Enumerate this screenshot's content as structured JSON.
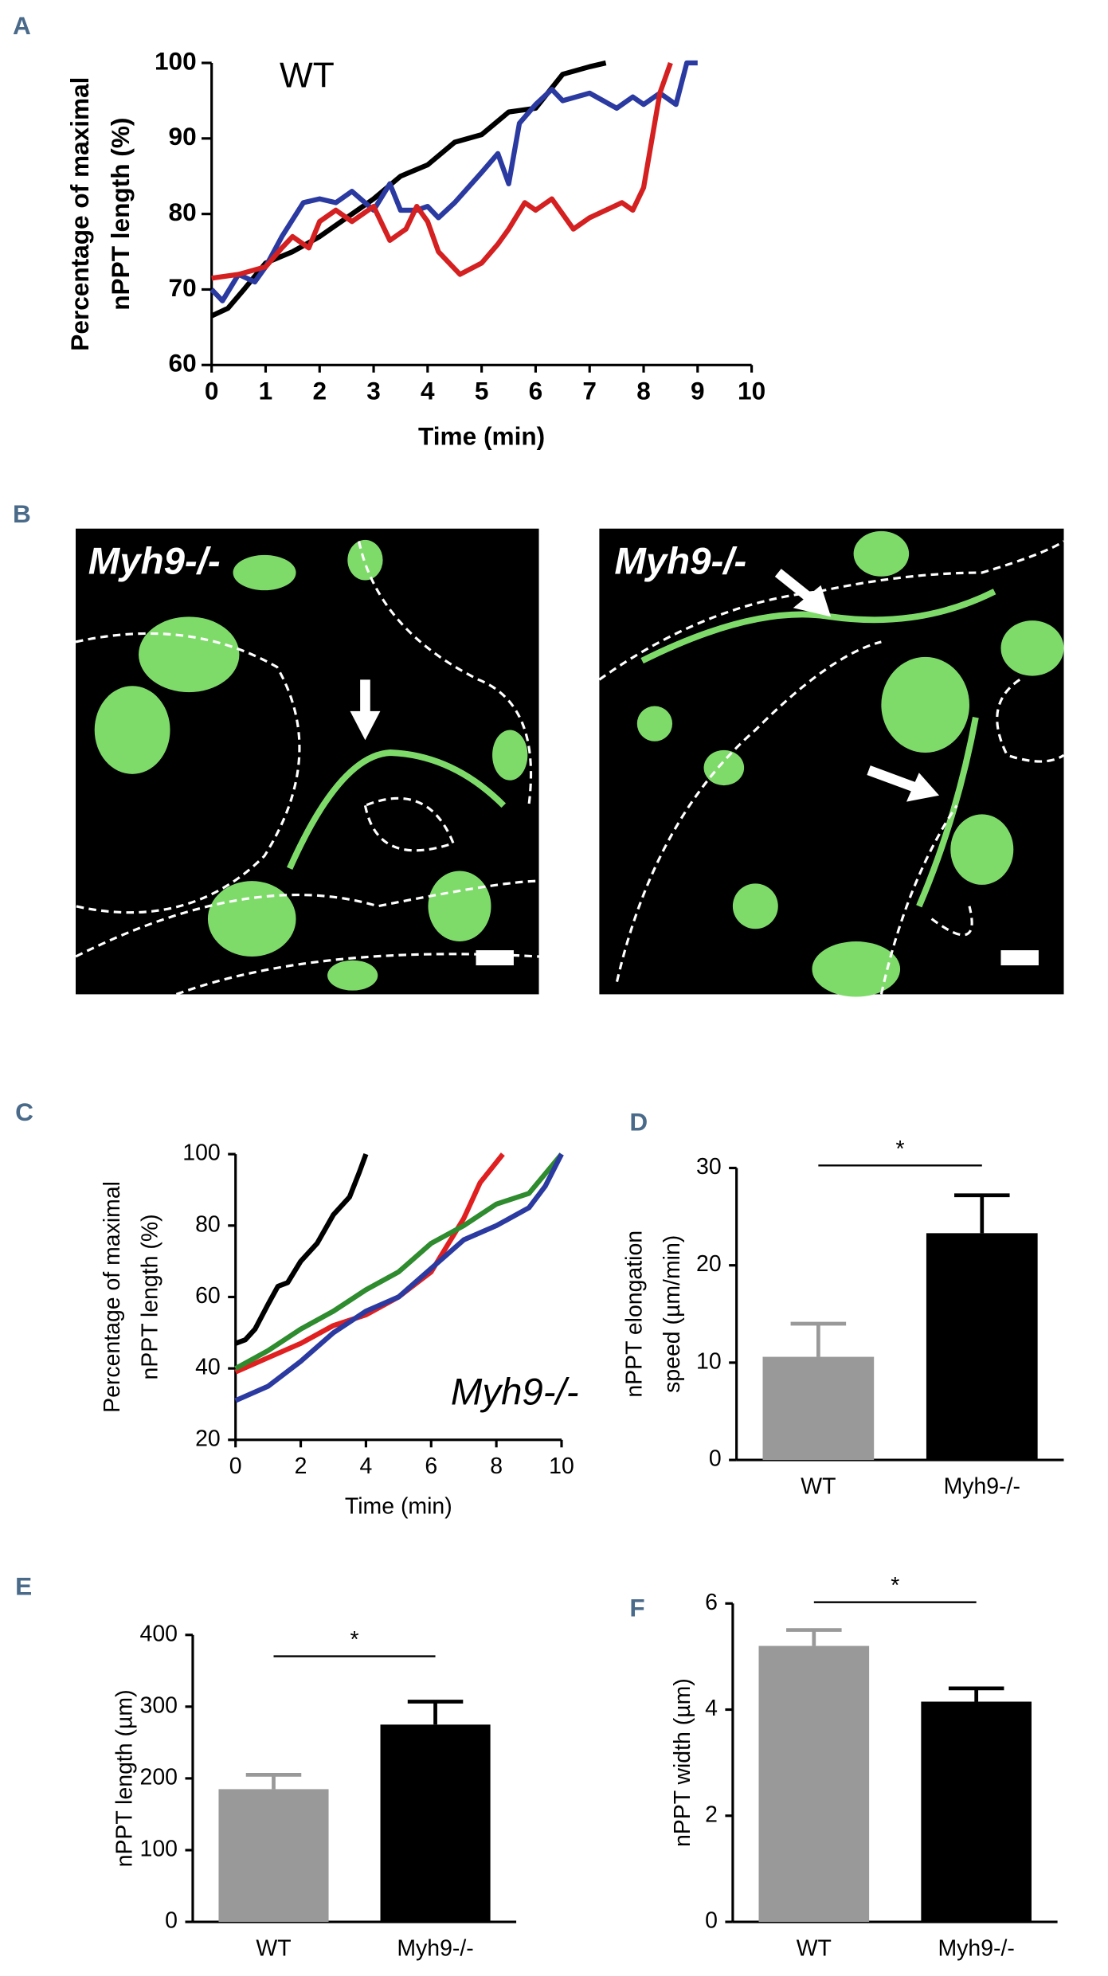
{
  "chart_data": [
    {
      "type": "line",
      "panel_label": "A",
      "annotation": "WT",
      "ylabel": [
        "Percentage of maximal",
        "nPPT length (%)"
      ],
      "xlabel": "Time (min)",
      "xlim": [
        0,
        10
      ],
      "xticks": [
        0,
        1,
        2,
        3,
        4,
        5,
        6,
        7,
        8,
        9,
        10
      ],
      "ylim": [
        60,
        100
      ],
      "yticks": [
        60,
        70,
        80,
        90,
        100
      ],
      "series": [
        {
          "color": "#000000",
          "x": [
            0,
            0.3,
            0.6,
            1,
            1.5,
            2,
            2.5,
            3,
            3.5,
            4,
            4.5,
            5,
            5.5,
            6,
            6.5,
            7,
            7.3
          ],
          "values": [
            66.5,
            67.5,
            70,
            73.5,
            75,
            77,
            79.5,
            82,
            85,
            86.5,
            89.5,
            90.5,
            93.5,
            94,
            98.5,
            99.5,
            100
          ]
        },
        {
          "color": "#2b3aa0",
          "x": [
            0,
            0.2,
            0.5,
            0.8,
            1,
            1.3,
            1.7,
            2,
            2.3,
            2.6,
            3,
            3.3,
            3.5,
            3.8,
            4,
            4.2,
            4.5,
            5,
            5.3,
            5.5,
            5.7,
            6,
            6.3,
            6.5,
            7,
            7.5,
            7.8,
            8,
            8.3,
            8.6,
            8.8,
            9
          ],
          "values": [
            70,
            68.5,
            72,
            71,
            73,
            77,
            81.5,
            82,
            81.5,
            83,
            80.5,
            84,
            80.5,
            80.5,
            81,
            79.5,
            81.5,
            85.5,
            88,
            84,
            92,
            94.5,
            96.5,
            95,
            96,
            94,
            95.5,
            94.5,
            96,
            94.5,
            100,
            100
          ]
        },
        {
          "color": "#d42020",
          "x": [
            0,
            0.5,
            1,
            1.3,
            1.5,
            1.8,
            2,
            2.3,
            2.6,
            3,
            3.3,
            3.6,
            3.8,
            4,
            4.2,
            4.6,
            5,
            5.3,
            5.5,
            5.8,
            6,
            6.3,
            6.7,
            7,
            7.3,
            7.6,
            7.8,
            8,
            8.3,
            8.5
          ],
          "values": [
            71.5,
            72,
            73,
            75.5,
            77,
            75.5,
            79,
            80.5,
            79,
            81,
            76.5,
            78,
            81,
            79,
            75,
            72,
            73.5,
            76,
            78,
            81.5,
            80.5,
            82,
            78,
            79.5,
            80.5,
            81.5,
            80.5,
            83.5,
            96,
            100
          ]
        }
      ]
    },
    {
      "type": "line",
      "panel_label": "C",
      "annotation": "Myh9-/-",
      "ylabel": [
        "Percentage of maximal",
        "nPPT length (%)"
      ],
      "xlabel": "Time (min)",
      "xlim": [
        0,
        10
      ],
      "xticks": [
        0,
        2,
        4,
        6,
        8,
        10
      ],
      "ylim": [
        20,
        100
      ],
      "yticks": [
        20,
        40,
        60,
        80,
        100
      ],
      "series": [
        {
          "color": "#000000",
          "x": [
            0,
            0.3,
            0.6,
            1,
            1.3,
            1.6,
            2,
            2.5,
            3,
            3.5,
            3.8,
            4
          ],
          "values": [
            47,
            48,
            51,
            58,
            63,
            64,
            70,
            75,
            83,
            88,
            95,
            100
          ]
        },
        {
          "color": "#e02020",
          "x": [
            0,
            1,
            2,
            3,
            4,
            5,
            6,
            7,
            7.5,
            8.2
          ],
          "values": [
            39,
            43,
            47,
            52,
            55,
            60,
            67,
            82,
            92,
            100
          ]
        },
        {
          "color": "#2e8b2e",
          "x": [
            0,
            1,
            2,
            3,
            4,
            5,
            6,
            7,
            8,
            9,
            10
          ],
          "values": [
            40,
            45,
            51,
            56,
            62,
            67,
            75,
            80,
            86,
            89,
            100
          ]
        },
        {
          "color": "#2b3aa0",
          "x": [
            0,
            1,
            2,
            3,
            4,
            5,
            6,
            7,
            8,
            9,
            9.5,
            10
          ],
          "values": [
            31,
            35,
            42,
            50,
            56,
            60,
            68,
            76,
            80,
            85,
            91,
            100
          ]
        }
      ]
    },
    {
      "type": "bar",
      "panel_label": "D",
      "annotation": "*",
      "ylabel": [
        "nPPT elongation",
        "speed (µm/min)"
      ],
      "categories": [
        "WT",
        "Myh9-/-"
      ],
      "values": [
        10.6,
        23.3
      ],
      "errors": [
        3.4,
        3.9
      ],
      "colors": [
        "#999999",
        "#000000"
      ],
      "ylim": [
        0,
        30
      ],
      "yticks": [
        0,
        10,
        20,
        30
      ]
    },
    {
      "type": "bar",
      "panel_label": "E",
      "annotation": "*",
      "ylabel": [
        "nPPT length (µm)"
      ],
      "categories": [
        "WT",
        "Myh9-/-"
      ],
      "values": [
        185,
        275
      ],
      "errors": [
        20,
        32
      ],
      "colors": [
        "#999999",
        "#000000"
      ],
      "ylim": [
        0,
        400
      ],
      "yticks": [
        0,
        100,
        200,
        300,
        400
      ]
    },
    {
      "type": "bar",
      "panel_label": "F",
      "annotation": "*",
      "ylabel": [
        "nPPT width (µm)"
      ],
      "categories": [
        "WT",
        "Myh9-/-"
      ],
      "values": [
        5.2,
        4.15
      ],
      "errors": [
        0.3,
        0.25
      ],
      "colors": [
        "#999999",
        "#000000"
      ],
      "ylim": [
        0,
        6
      ],
      "yticks": [
        0,
        2,
        4,
        6
      ]
    }
  ],
  "figure_b": {
    "panel_label": "B",
    "images": [
      {
        "label": "Myh9-/-"
      },
      {
        "label": "Myh9-/-"
      }
    ]
  }
}
